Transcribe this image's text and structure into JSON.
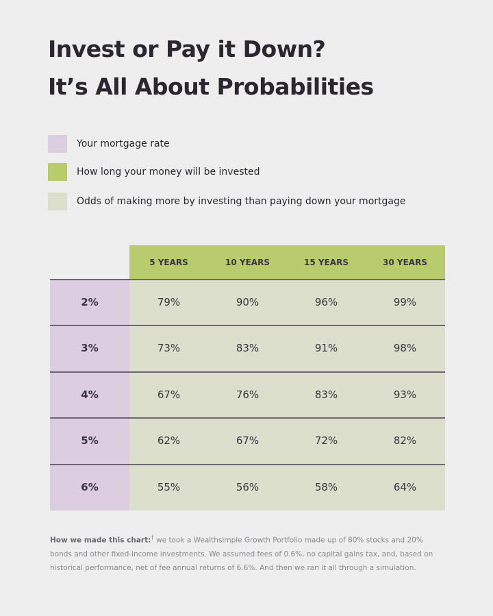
{
  "chart_data": {
    "type": "table",
    "title": [
      "Invest or Pay it Down?",
      "It’s All About Probabilities"
    ],
    "legend": [
      {
        "label": "Your mortgage rate",
        "color": "#dccde0"
      },
      {
        "label": "How long your money will be invested",
        "color": "#b8cc6e"
      },
      {
        "label": "Odds of making more by investing than paying down your mortgage",
        "color": "#dcdfcc"
      }
    ],
    "columns": [
      "5 YEARS",
      "10 YEARS",
      "15 YEARS",
      "30 YEARS"
    ],
    "rows": [
      {
        "rate": "2%",
        "values": [
          "79%",
          "90%",
          "96%",
          "99%"
        ]
      },
      {
        "rate": "3%",
        "values": [
          "73%",
          "83%",
          "91%",
          "98%"
        ]
      },
      {
        "rate": "4%",
        "values": [
          "67%",
          "76%",
          "83%",
          "93%"
        ]
      },
      {
        "rate": "5%",
        "values": [
          "62%",
          "67%",
          "72%",
          "82%"
        ]
      },
      {
        "rate": "6%",
        "values": [
          "55%",
          "56%",
          "58%",
          "64%"
        ]
      }
    ],
    "footnote": {
      "lead": "How we made this chart:",
      "mark": "†",
      "text": " we took a Wealthsimple Growth Portfolio made up of 80% stocks and 20% bonds and other fixed-income investments. We assumed fees of 0.6%, no capital gains tax, and, based on historical performance, net of fee annual returns of 6.6%. And then we ran it all through a simulation."
    }
  }
}
